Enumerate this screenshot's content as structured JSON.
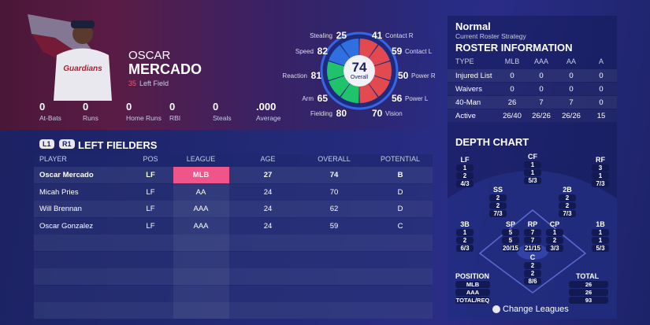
{
  "player": {
    "first_name": "OSCAR",
    "last_name": "MERCADO",
    "number": "35",
    "position": "Left Field",
    "stats": [
      {
        "value": "0",
        "label": "At-Bats"
      },
      {
        "value": "0",
        "label": "Runs"
      },
      {
        "value": "0",
        "label": "Home Runs"
      },
      {
        "value": "0",
        "label": "RBI"
      },
      {
        "value": "0",
        "label": "Steals"
      },
      {
        "value": ".000",
        "label": "Average"
      }
    ]
  },
  "ratings": {
    "overall": "74",
    "overall_label": "Overall",
    "attributes": [
      {
        "name": "Stealing",
        "value": "25"
      },
      {
        "name": "Speed",
        "value": "82"
      },
      {
        "name": "Reaction",
        "value": "81"
      },
      {
        "name": "Arm",
        "value": "65"
      },
      {
        "name": "Fielding",
        "value": "80"
      },
      {
        "name": "Contact R",
        "value": "41"
      },
      {
        "name": "Contact L",
        "value": "59"
      },
      {
        "name": "Power R",
        "value": "50"
      },
      {
        "name": "Power L",
        "value": "56"
      },
      {
        "name": "Vision",
        "value": "70"
      }
    ]
  },
  "tabs": {
    "left_button": "L1",
    "right_button": "R1",
    "title": "LEFT FIELDERS"
  },
  "table": {
    "headers": [
      "PLAYER",
      "POS",
      "LEAGUE",
      "AGE",
      "OVERALL",
      "POTENTIAL"
    ],
    "rows": [
      [
        "Oscar Mercado",
        "LF",
        "MLB",
        "27",
        "74",
        "B"
      ],
      [
        "Micah Pries",
        "LF",
        "AA",
        "24",
        "70",
        "D"
      ],
      [
        "Will Brennan",
        "LF",
        "AAA",
        "24",
        "62",
        "D"
      ],
      [
        "Oscar Gonzalez",
        "LF",
        "AAA",
        "24",
        "59",
        "C"
      ]
    ]
  },
  "strategy": {
    "name": "Normal",
    "caption": "Current Roster Strategy"
  },
  "roster": {
    "title": "ROSTER INFORMATION",
    "headers": [
      "TYPE",
      "MLB",
      "AAA",
      "AA",
      "A"
    ],
    "rows": [
      [
        "Injured List",
        "0",
        "0",
        "0",
        "0"
      ],
      [
        "Waivers",
        "0",
        "0",
        "0",
        "0"
      ],
      [
        "40-Man",
        "26",
        "7",
        "7",
        "0"
      ],
      [
        "Active",
        "26/40",
        "26/26",
        "26/26",
        "15"
      ]
    ]
  },
  "depth_chart": {
    "title": "DEPTH CHART",
    "positions": [
      {
        "label": "LF",
        "values": [
          "1",
          "2",
          "4/3"
        ]
      },
      {
        "label": "CF",
        "values": [
          "1",
          "1",
          "5/3"
        ]
      },
      {
        "label": "RF",
        "values": [
          "3",
          "1",
          "7/3"
        ]
      },
      {
        "label": "SS",
        "values": [
          "2",
          "2",
          "7/3"
        ]
      },
      {
        "label": "2B",
        "values": [
          "2",
          "2",
          "7/3"
        ]
      },
      {
        "label": "3B",
        "values": [
          "1",
          "2",
          "6/3"
        ]
      },
      {
        "label": "SP",
        "values": [
          "5",
          "5",
          "20/15"
        ]
      },
      {
        "label": "RP",
        "values": [
          "7",
          "7",
          "21/15"
        ]
      },
      {
        "label": "CP",
        "values": [
          "1",
          "2",
          "3/3"
        ]
      },
      {
        "label": "1B",
        "values": [
          "1",
          "1",
          "5/3"
        ]
      },
      {
        "label": "C",
        "values": [
          "2",
          "2",
          "8/6"
        ]
      }
    ],
    "summary": {
      "position_header": "POSITION",
      "total_header": "TOTAL",
      "rows": [
        [
          "MLB",
          "26"
        ],
        [
          "AAA",
          "26"
        ],
        [
          "TOTAL/REQ",
          "93"
        ]
      ]
    }
  },
  "footer": {
    "button": "Change Leagues"
  }
}
